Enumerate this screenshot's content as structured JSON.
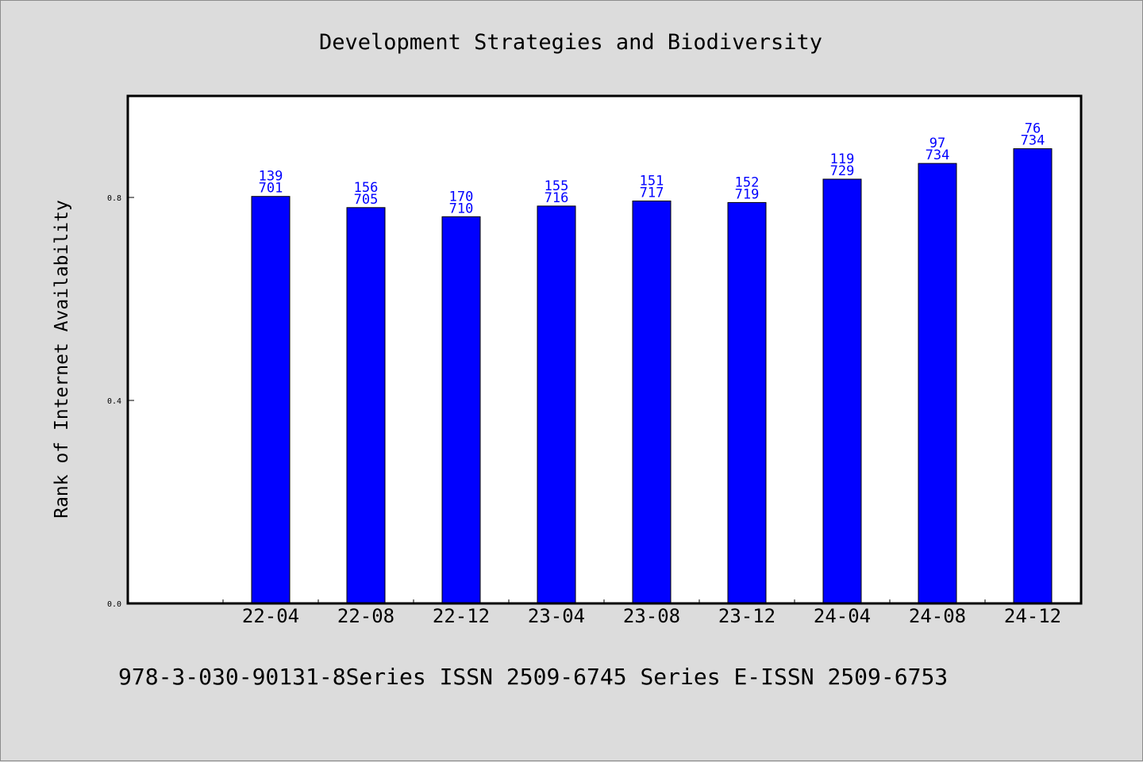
{
  "chart_data": {
    "type": "bar",
    "title": "Development Strategies and Biodiversity",
    "ylabel": "Rank of Internet Availability",
    "xlabel": "",
    "categories": [
      "22-04",
      "22-08",
      "22-12",
      "23-04",
      "23-08",
      "23-12",
      "24-04",
      "24-08",
      "24-12"
    ],
    "values": [
      0.802,
      0.78,
      0.762,
      0.783,
      0.793,
      0.79,
      0.836,
      0.867,
      0.896
    ],
    "labels_top": [
      "139",
      "156",
      "170",
      "155",
      "151",
      "152",
      "119",
      "97",
      "76"
    ],
    "labels_bottom": [
      "701",
      "705",
      "710",
      "716",
      "717",
      "719",
      "729",
      "734",
      "734"
    ],
    "yticks": [
      "0.0",
      "0.4",
      "0.8"
    ],
    "ytick_values": [
      0.0,
      0.4,
      0.8
    ],
    "ylim": [
      0,
      1.0
    ],
    "grid": false,
    "legend": "none",
    "bar_color": "#0000ff",
    "label_color": "#0000ff"
  },
  "footer": {
    "text": "978-3-030-90131-8Series ISSN 2509-6745 Series E-ISSN 2509-6753"
  }
}
